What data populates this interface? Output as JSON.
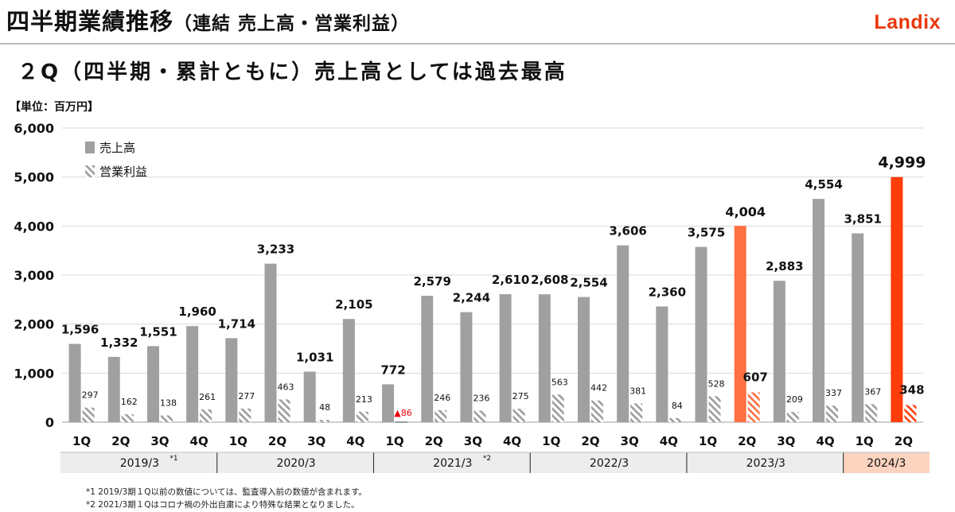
{
  "header": {
    "title": "四半期業績推移",
    "title_sub": "（連結 売上高・営業利益）",
    "logo": "Landix",
    "headline": "２Q（四半期・累計ともに）売上高としては過去最高",
    "unit_label": "【単位：百万円】"
  },
  "colors": {
    "sales": "#a0a0a0",
    "profit_hatch": "#9c9c9c",
    "highlight_2023": "#ff7043",
    "highlight_2024": "#ff3d0a",
    "negative": "#e8000b",
    "band": "#ededed",
    "band_highlight": "#fbd3bf",
    "logo": "#e8380d"
  },
  "chart_data": {
    "type": "bar",
    "ylim": [
      0,
      6000
    ],
    "yticks": [
      "0",
      "1,000",
      "2,000",
      "3,000",
      "4,000",
      "5,000",
      "6,000"
    ],
    "legend": [
      "売上高",
      "営業利益"
    ],
    "quarters": [
      "1Q",
      "2Q",
      "3Q",
      "4Q",
      "1Q",
      "2Q",
      "3Q",
      "4Q",
      "1Q",
      "2Q",
      "3Q",
      "4Q",
      "1Q",
      "2Q",
      "3Q",
      "4Q",
      "1Q",
      "2Q",
      "3Q",
      "4Q",
      "1Q",
      "2Q"
    ],
    "series": [
      {
        "name": "売上高",
        "values": [
          1596,
          1332,
          1551,
          1960,
          1714,
          3233,
          1031,
          2105,
          772,
          2579,
          2244,
          2610,
          2608,
          2554,
          3606,
          2360,
          3575,
          4004,
          2883,
          4554,
          3851,
          4999
        ],
        "labels": [
          "1,596",
          "1,332",
          "1,551",
          "1,960",
          "1,714",
          "3,233",
          "1,031",
          "2,105",
          "772",
          "2,579",
          "2,244",
          "2,610",
          "2,608",
          "2,554",
          "3,606",
          "2,360",
          "3,575",
          "4,004",
          "2,883",
          "4,554",
          "3,851",
          "4,999"
        ]
      },
      {
        "name": "営業利益",
        "values": [
          297,
          162,
          138,
          261,
          277,
          463,
          48,
          213,
          -86,
          246,
          236,
          275,
          563,
          442,
          381,
          84,
          528,
          607,
          209,
          337,
          367,
          348
        ],
        "labels": [
          "297",
          "162",
          "138",
          "261",
          "277",
          "463",
          "48",
          "213",
          "▲86",
          "246",
          "236",
          "275",
          "563",
          "442",
          "381",
          "84",
          "528",
          "607",
          "209",
          "337",
          "367",
          "348"
        ]
      }
    ],
    "highlight": [
      {
        "index": 17,
        "style": "highlight_2023"
      },
      {
        "index": 21,
        "style": "highlight_2024"
      }
    ],
    "years": [
      {
        "label": "2019/3",
        "note": "*1",
        "start": 0,
        "count": 4
      },
      {
        "label": "2020/3",
        "note": "",
        "start": 4,
        "count": 4
      },
      {
        "label": "2021/3",
        "note": "*2",
        "start": 8,
        "count": 4
      },
      {
        "label": "2022/3",
        "note": "",
        "start": 12,
        "count": 4
      },
      {
        "label": "2023/3",
        "note": "",
        "start": 16,
        "count": 4
      },
      {
        "label": "2024/3",
        "note": "",
        "start": 20,
        "count": 2,
        "highlight": true
      }
    ]
  },
  "footnotes": [
    "*1  2019/3期１Q以前の数値については、監査導入前の数値が含まれます。",
    "*2  2021/3期１Qはコロナ禍の外出自粛により特殊な結果となりました。"
  ]
}
